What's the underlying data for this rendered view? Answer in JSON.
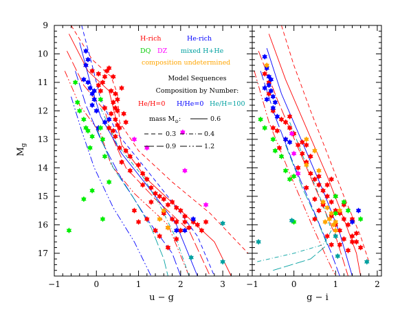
{
  "chart_data": [
    {
      "panel": "left",
      "type": "scatter",
      "xlabel": "u − g",
      "ylabel": "Mg",
      "xlim": [
        -1,
        3.7
      ],
      "ylim": [
        17.8,
        9
      ],
      "y_inverted": true,
      "xticks": [
        -1,
        0,
        1,
        2,
        3
      ],
      "yticks": [
        9,
        10,
        11,
        12,
        13,
        14,
        15,
        16,
        17
      ],
      "series": [
        {
          "name": "H-rich",
          "color": "#ff0000",
          "points": [
            [
              -0.25,
              10.4
            ],
            [
              -0.1,
              10.6
            ],
            [
              0.05,
              10.7
            ],
            [
              0.2,
              10.8
            ],
            [
              0.25,
              10.6
            ],
            [
              0.3,
              10.5
            ],
            [
              0.4,
              10.8
            ],
            [
              0.05,
              11.1
            ],
            [
              0.1,
              11.3
            ],
            [
              0.35,
              11.3
            ],
            [
              0.45,
              11.4
            ],
            [
              0.4,
              11.7
            ],
            [
              0.45,
              11.9
            ],
            [
              0.5,
              12.0
            ],
            [
              0.35,
              12.1
            ],
            [
              0.45,
              12.3
            ],
            [
              0.5,
              12.5
            ],
            [
              0.3,
              12.6
            ],
            [
              0.4,
              12.7
            ],
            [
              0.55,
              12.6
            ],
            [
              0.45,
              12.9
            ],
            [
              0.55,
              13.3
            ],
            [
              0.7,
              13.4
            ],
            [
              0.8,
              13.6
            ],
            [
              1.0,
              13.9
            ],
            [
              1.1,
              14.2
            ],
            [
              1.2,
              14.4
            ],
            [
              1.1,
              14.6
            ],
            [
              1.3,
              14.7
            ],
            [
              1.4,
              14.9
            ],
            [
              1.5,
              15.0
            ],
            [
              1.6,
              15.1
            ],
            [
              1.3,
              15.2
            ],
            [
              1.7,
              15.3
            ],
            [
              1.8,
              15.2
            ],
            [
              1.9,
              15.4
            ],
            [
              1.6,
              15.6
            ],
            [
              2.0,
              15.5
            ],
            [
              2.1,
              15.7
            ],
            [
              1.8,
              15.8
            ],
            [
              1.9,
              15.9
            ],
            [
              2.1,
              15.9
            ],
            [
              2.3,
              15.9
            ],
            [
              2.4,
              16.0
            ],
            [
              2.6,
              15.9
            ],
            [
              1.7,
              16.1
            ],
            [
              2.0,
              16.2
            ],
            [
              2.2,
              16.1
            ],
            [
              2.5,
              16.2
            ],
            [
              1.5,
              16.4
            ],
            [
              1.9,
              16.5
            ],
            [
              1.4,
              16.2
            ],
            [
              1.7,
              16.8
            ],
            [
              1.2,
              15.8
            ],
            [
              1.0,
              15.9
            ],
            [
              0.9,
              15.5
            ],
            [
              0.6,
              13.8
            ],
            [
              0.8,
              14.1
            ],
            [
              0.15,
              11.0
            ],
            [
              0.2,
              11.9
            ],
            [
              0.6,
              11.2
            ],
            [
              0.5,
              11.6
            ],
            [
              0.65,
              12.1
            ],
            [
              0.7,
              12.4
            ]
          ]
        },
        {
          "name": "He-rich",
          "color": "#0000ff",
          "points": [
            [
              -0.25,
              9.9
            ],
            [
              -0.2,
              10.2
            ],
            [
              -0.25,
              10.4
            ],
            [
              -0.3,
              10.9
            ],
            [
              -0.2,
              11.0
            ],
            [
              -0.15,
              11.2
            ],
            [
              -0.1,
              11.4
            ],
            [
              -0.05,
              11.6
            ],
            [
              -0.1,
              11.8
            ],
            [
              0.0,
              12.0
            ],
            [
              0.2,
              12.4
            ],
            [
              0.3,
              12.3
            ],
            [
              0.05,
              12.6
            ],
            [
              -0.05,
              11.3
            ],
            [
              1.9,
              16.2
            ],
            [
              2.1,
              16.2
            ],
            [
              2.3,
              15.8
            ]
          ]
        },
        {
          "name": "DQ",
          "color": "#00ee00",
          "points": [
            [
              -0.5,
              11.0
            ],
            [
              -0.45,
              11.7
            ],
            [
              -0.4,
              12.0
            ],
            [
              -0.3,
              12.3
            ],
            [
              -0.25,
              12.6
            ],
            [
              -0.2,
              12.7
            ],
            [
              -0.1,
              12.9
            ],
            [
              -0.15,
              13.3
            ],
            [
              0.1,
              12.6
            ],
            [
              0.15,
              13.0
            ],
            [
              0.2,
              13.6
            ],
            [
              0.3,
              14.5
            ],
            [
              -0.1,
              14.8
            ],
            [
              -0.3,
              15.1
            ],
            [
              -0.65,
              16.2
            ],
            [
              0.15,
              15.8
            ],
            [
              0.1,
              11.6
            ]
          ]
        },
        {
          "name": "DZ",
          "color": "#ff00ff",
          "points": [
            [
              0.9,
              13.0
            ],
            [
              1.2,
              13.3
            ],
            [
              2.1,
              14.1
            ],
            [
              2.6,
              15.3
            ],
            [
              2.05,
              12.75
            ]
          ]
        },
        {
          "name": "mixed H+He",
          "color": "#00a0a0",
          "points": [
            [
              3.0,
              15.95
            ],
            [
              2.25,
              17.15
            ],
            [
              3.0,
              17.3
            ]
          ]
        },
        {
          "name": "composition undetermined",
          "color": "#ffa500",
          "points": [
            [
              1.6,
              15.5
            ],
            [
              1.5,
              15.8
            ],
            [
              1.7,
              16.1
            ]
          ]
        }
      ]
    },
    {
      "panel": "right",
      "type": "scatter",
      "xlabel": "g − i",
      "xlim": [
        -1,
        2.1
      ],
      "ylim": [
        17.8,
        9
      ],
      "y_inverted": true,
      "xticks": [
        -1,
        0,
        1,
        2
      ],
      "series": [
        {
          "name": "H-rich",
          "color": "#ff0000",
          "points": [
            [
              -0.7,
              10.7
            ],
            [
              -0.6,
              11.0
            ],
            [
              -0.6,
              11.4
            ],
            [
              -0.5,
              12.0
            ],
            [
              -0.3,
              12.3
            ],
            [
              -0.2,
              12.4
            ],
            [
              -0.1,
              12.6
            ],
            [
              0.0,
              12.8
            ],
            [
              -0.2,
              13.0
            ],
            [
              0.1,
              13.2
            ],
            [
              0.2,
              13.5
            ],
            [
              0.3,
              13.8
            ],
            [
              0.1,
              14.0
            ],
            [
              0.4,
              14.2
            ],
            [
              0.5,
              14.4
            ],
            [
              0.6,
              14.6
            ],
            [
              0.3,
              14.7
            ],
            [
              0.7,
              14.8
            ],
            [
              0.8,
              15.0
            ],
            [
              0.5,
              15.1
            ],
            [
              0.9,
              15.2
            ],
            [
              0.7,
              15.3
            ],
            [
              1.0,
              15.5
            ],
            [
              1.1,
              15.6
            ],
            [
              0.9,
              15.7
            ],
            [
              1.2,
              15.8
            ],
            [
              1.3,
              16.0
            ],
            [
              1.0,
              16.0
            ],
            [
              1.1,
              16.2
            ],
            [
              1.4,
              16.4
            ],
            [
              0.8,
              16.4
            ],
            [
              1.5,
              16.6
            ],
            [
              1.2,
              16.5
            ],
            [
              1.6,
              16.8
            ],
            [
              0.9,
              16.7
            ],
            [
              1.3,
              16.9
            ],
            [
              1.5,
              16.3
            ],
            [
              1.1,
              16.7
            ],
            [
              1.4,
              16.6
            ],
            [
              0.2,
              13.1
            ],
            [
              -0.1,
              12.2
            ],
            [
              0.4,
              13.6
            ],
            [
              0.3,
              13.2
            ],
            [
              0.6,
              14.3
            ],
            [
              0.8,
              14.6
            ],
            [
              0.9,
              14.4
            ],
            [
              1.0,
              15.0
            ],
            [
              1.2,
              15.3
            ],
            [
              0.6,
              15.5
            ],
            [
              1.4,
              15.8
            ],
            [
              -0.5,
              12.6
            ],
            [
              -0.4,
              12.7
            ],
            [
              -0.35,
              13.3
            ],
            [
              0.5,
              15.8
            ]
          ]
        },
        {
          "name": "He-rich",
          "color": "#0000ff",
          "points": [
            [
              -0.7,
              10.1
            ],
            [
              -0.65,
              10.5
            ],
            [
              -0.6,
              10.8
            ],
            [
              -0.6,
              11.1
            ],
            [
              -0.55,
              11.3
            ],
            [
              -0.5,
              11.5
            ],
            [
              -0.45,
              11.7
            ],
            [
              -0.5,
              11.9
            ],
            [
              -0.4,
              12.2
            ],
            [
              -0.2,
              13.0
            ],
            [
              -0.1,
              13.1
            ],
            [
              1.4,
              15.9
            ],
            [
              1.55,
              15.5
            ],
            [
              -0.7,
              11.2
            ],
            [
              -0.65,
              11.6
            ],
            [
              -0.55,
              10.9
            ]
          ]
        },
        {
          "name": "DQ",
          "color": "#00ee00",
          "points": [
            [
              -0.8,
              12.3
            ],
            [
              -0.7,
              12.6
            ],
            [
              -0.5,
              13.0
            ],
            [
              -0.45,
              13.4
            ],
            [
              -0.3,
              13.6
            ],
            [
              -0.2,
              14.1
            ],
            [
              -0.1,
              14.4
            ],
            [
              0.0,
              14.3
            ],
            [
              1.0,
              15.0
            ],
            [
              1.2,
              15.2
            ],
            [
              1.0,
              15.6
            ],
            [
              1.3,
              15.5
            ],
            [
              1.6,
              15.8
            ],
            [
              0.0,
              15.9
            ]
          ]
        },
        {
          "name": "DZ",
          "color": "#ff00ff",
          "points": [
            [
              -0.05,
              12.8
            ],
            [
              0.0,
              13.5
            ],
            [
              0.1,
              14.2
            ]
          ]
        },
        {
          "name": "mixed H+He",
          "color": "#00a0a0",
          "points": [
            [
              -0.85,
              16.6
            ],
            [
              -0.05,
              15.85
            ],
            [
              1.0,
              16.4
            ],
            [
              1.05,
              17.1
            ],
            [
              1.75,
              17.3
            ]
          ]
        },
        {
          "name": "composition undetermined",
          "color": "#ffa500",
          "points": [
            [
              -0.65,
              10.4
            ],
            [
              0.3,
              13.0
            ],
            [
              0.5,
              13.4
            ],
            [
              0.3,
              13.9
            ],
            [
              0.6,
              14.1
            ],
            [
              0.7,
              15.2
            ],
            [
              0.8,
              15.4
            ],
            [
              0.9,
              15.6
            ],
            [
              0.85,
              15.8
            ],
            [
              1.0,
              15.9
            ],
            [
              0.95,
              16.0
            ],
            [
              1.1,
              15.5
            ],
            [
              0.75,
              15.9
            ],
            [
              1.0,
              16.2
            ]
          ]
        }
      ]
    }
  ],
  "legend": {
    "h_rich": "H-rich",
    "he_rich": "He-rich",
    "dq": "DQ",
    "dz": "DZ",
    "mixed": "mixed H+He",
    "undetermined": "composition undetermined",
    "model_title": "Model Sequences",
    "composition_title": "Composition by Number:",
    "he_h_0": "He/H=0",
    "h_he_0": "H/He=0",
    "he_h_100": "He/H=100",
    "mass_label": "mass M",
    "mass_sub": "⊙",
    "mass_colon": ":",
    "mass_06": "0.6",
    "mass_03": "0.3",
    "mass_04": "0.4",
    "mass_09": "0.9",
    "mass_12": "1.2"
  },
  "axis_labels": {
    "y_main": "M",
    "y_sub": "g",
    "x_left": "u − g",
    "x_right": "g − i"
  },
  "colors": {
    "h_rich": "#ff0000",
    "he_rich": "#0000ff",
    "dq": "#00ee00",
    "dz": "#ff00ff",
    "mixed": "#00a0a0",
    "undetermined": "#ffa500"
  }
}
